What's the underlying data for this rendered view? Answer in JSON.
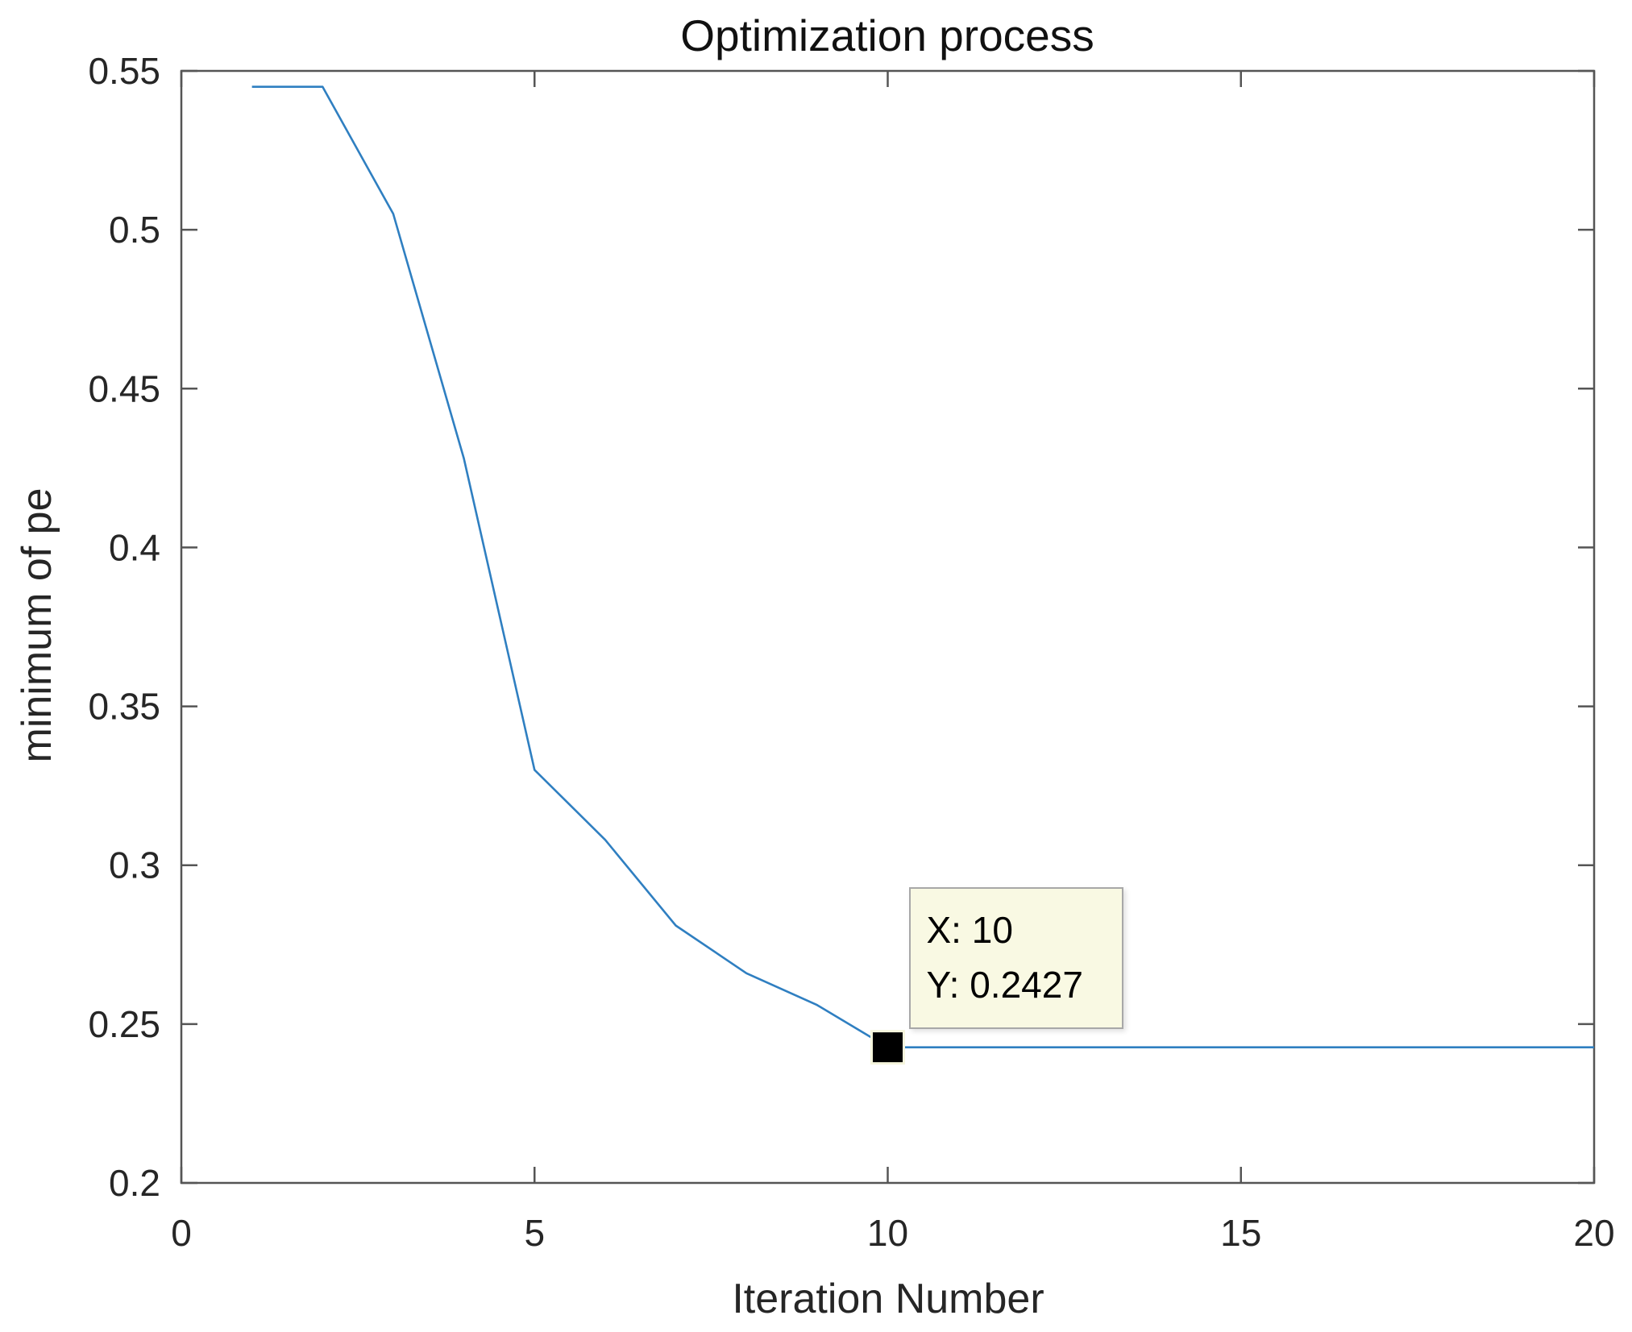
{
  "chart_data": {
    "type": "line",
    "title": "Optimization process",
    "xlabel": "Iteration Number",
    "ylabel": "minimum of pe",
    "xlim": [
      0,
      20
    ],
    "ylim": [
      0.2,
      0.55
    ],
    "xticks": [
      0,
      5,
      10,
      15,
      20
    ],
    "xtick_labels": [
      "0",
      "5",
      "10",
      "15",
      "20"
    ],
    "yticks": [
      0.2,
      0.25,
      0.3,
      0.35,
      0.4,
      0.45,
      0.5,
      0.55
    ],
    "ytick_labels": [
      "0.2",
      "0.25",
      "0.3",
      "0.35",
      "0.4",
      "0.45",
      "0.5",
      "0.55"
    ],
    "grid": false,
    "legend_position": "none",
    "axis_color": "#555555",
    "tick_label_color": "#262626",
    "series": [
      {
        "name": "minimum of pe",
        "color": "#2f7fc1",
        "x": [
          1,
          2,
          3,
          4,
          5,
          6,
          7,
          8,
          9,
          10,
          11,
          12,
          13,
          14,
          15,
          16,
          17,
          18,
          19,
          20
        ],
        "y": [
          0.545,
          0.545,
          0.505,
          0.428,
          0.33,
          0.308,
          0.281,
          0.266,
          0.256,
          0.2427,
          0.2427,
          0.2427,
          0.2427,
          0.2427,
          0.2427,
          0.2427,
          0.2427,
          0.2427,
          0.2427,
          0.2427
        ]
      }
    ],
    "datatip": {
      "x": 10,
      "y": 0.2427,
      "label_x": "X: 10",
      "label_y": "Y: 0.2427",
      "background": "#f9f9e3",
      "border_color": "#a8a8a8",
      "marker_color": "#000000",
      "marker_edge_color": "#f6f6dd"
    }
  }
}
